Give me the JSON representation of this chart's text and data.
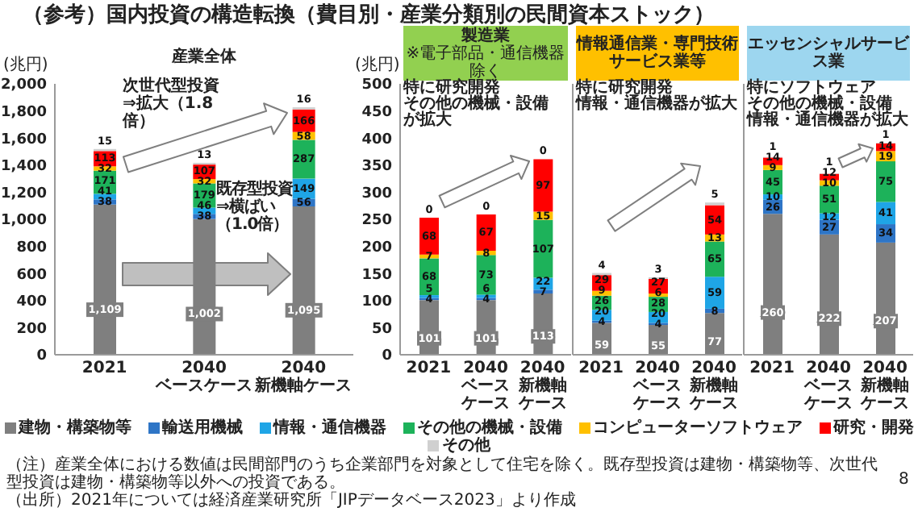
{
  "chart_data": [
    {
      "type": "bar",
      "stacked": true,
      "title": "（参考）国内投資の構造転換（費目別・産業分類別の民間資本ストック）",
      "subtitle": "産業全体",
      "ylabel": "(兆円)",
      "categories": [
        "2021",
        "2040\nベースケース",
        "2040\n新機軸ケース"
      ],
      "series": [
        {
          "name": "建物・構築物等",
          "color": "#7f7f7f",
          "values": [
            1109,
            1002,
            1095
          ],
          "value_labels": [
            "1,109",
            "1,002",
            "1,095"
          ]
        },
        {
          "name": "輸送用機械",
          "color": "#2e75c6",
          "values": [
            38,
            38,
            56
          ]
        },
        {
          "name": "情報・通信機器",
          "color": "#1fa5e6",
          "values": [
            41,
            46,
            149
          ]
        },
        {
          "name": "その他の機械・設備",
          "color": "#1db25a",
          "values": [
            171,
            179,
            287
          ]
        },
        {
          "name": "コンピューターソフトウェア",
          "color": "#ffc000",
          "values": [
            32,
            32,
            58
          ]
        },
        {
          "name": "研究・開発",
          "color": "#ff0000",
          "values": [
            113,
            107,
            166
          ]
        },
        {
          "name": "その他",
          "color": "#d0d0d0",
          "values": [
            15,
            13,
            16
          ]
        }
      ],
      "ylim": [
        0,
        2000
      ],
      "yticks": [
        0,
        200,
        400,
        600,
        800,
        {
          "value": 1000,
          "label": "1,000"
        },
        {
          "value": 1200,
          "label": "1,200"
        },
        {
          "value": 1400,
          "label": "1,400"
        },
        {
          "value": 1600,
          "label": "1,600"
        },
        {
          "value": 1800,
          "label": "1,800"
        },
        {
          "value": 2000,
          "label": "2,000"
        }
      ],
      "data_labels": true,
      "legend": "bottom",
      "annotations": [
        "次世代型投資⇒拡大（1.8倍）",
        "既存型投資⇒横ばい（1.0倍）",
        "（注）産業全体における数値は民間部門のうち企業部門を対象として住宅を除く。既存型投資は建物・構築物等、次世代型投資は建物・構築物等以外への投資である。",
        "（出所）2021年については経済産業研究所「JIPデータベース2023」より作成",
        "8"
      ]
    },
    {
      "type": "bar",
      "stacked": true,
      "title": "製造業",
      "subtitle": "※電子部品・通信機器除く",
      "ylabel": "(兆円)",
      "categories": [
        "2021",
        "2040\nベースケース",
        "2040\n新機軸ケース"
      ],
      "series": [
        {
          "color": "#7f7f7f",
          "values": [
            101,
            101,
            113
          ]
        },
        {
          "color": "#2e75c6",
          "values": [
            4,
            4,
            7
          ]
        },
        {
          "color": "#1fa5e6",
          "values": [
            5,
            6,
            22
          ]
        },
        {
          "color": "#1db25a",
          "values": [
            68,
            73,
            107
          ]
        },
        {
          "color": "#ffc000",
          "values": [
            7,
            8,
            15
          ]
        },
        {
          "color": "#ff0000",
          "values": [
            68,
            67,
            97
          ]
        },
        {
          "color": "#d0d0d0",
          "values": [
            0,
            0,
            0
          ]
        }
      ],
      "ylim": [
        0,
        500
      ],
      "yticks": [
        0,
        50,
        100,
        150,
        200,
        250,
        300,
        350,
        400,
        450,
        500
      ],
      "data_labels": true,
      "annotations": [
        "特に",
        "研究開発",
        "その他の機械・設備",
        "が拡大"
      ]
    },
    {
      "type": "bar",
      "stacked": true,
      "title": "情報通信業・専門技術サービス業等",
      "categories": [
        "2021",
        "2040\nベースケース",
        "2040\n新機軸ケース"
      ],
      "series": [
        {
          "color": "#7f7f7f",
          "values": [
            59,
            55,
            77
          ]
        },
        {
          "color": "#2e75c6",
          "values": [
            4,
            4,
            8
          ]
        },
        {
          "color": "#1fa5e6",
          "values": [
            20,
            20,
            59
          ]
        },
        {
          "color": "#1db25a",
          "values": [
            26,
            28,
            65
          ]
        },
        {
          "color": "#ffc000",
          "values": [
            9,
            6,
            13
          ]
        },
        {
          "color": "#ff0000",
          "values": [
            29,
            27,
            54
          ]
        },
        {
          "color": "#d0d0d0",
          "values": [
            4,
            3,
            5
          ]
        }
      ],
      "ylim": [
        0,
        500
      ],
      "tick_labels": "x",
      "data_labels": true,
      "annotations": [
        "特に",
        "研究開発",
        "情報・通信機器",
        "が拡大"
      ]
    },
    {
      "type": "bar",
      "stacked": true,
      "title": "エッセンシャルサービス業",
      "categories": [
        "2021",
        "2040\nベースケース",
        "2040\n新機軸ケース"
      ],
      "series": [
        {
          "color": "#7f7f7f",
          "values": [
            260,
            222,
            207
          ]
        },
        {
          "color": "#2e75c6",
          "values": [
            26,
            27,
            34
          ]
        },
        {
          "color": "#1fa5e6",
          "values": [
            10,
            12,
            41
          ]
        },
        {
          "color": "#1db25a",
          "values": [
            45,
            51,
            75
          ]
        },
        {
          "color": "#ffc000",
          "values": [
            9,
            10,
            19
          ]
        },
        {
          "color": "#ff0000",
          "values": [
            14,
            12,
            14
          ]
        },
        {
          "color": "#d0d0d0",
          "values": [
            1,
            1,
            1
          ]
        }
      ],
      "ylim": [
        0,
        500
      ],
      "tick_labels": "x",
      "data_labels": true,
      "annotations": [
        "特に",
        "ソフトウェア",
        "その他の機械・設備",
        "情報・通信機器",
        "が拡大"
      ]
    }
  ]
}
